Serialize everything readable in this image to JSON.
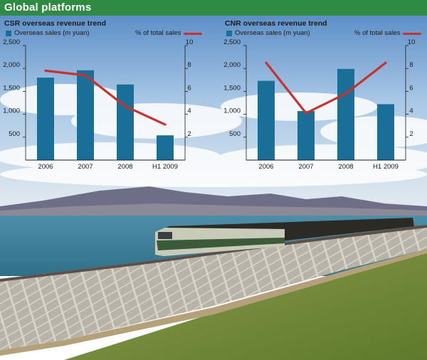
{
  "header": {
    "title": "Global platforms"
  },
  "colors": {
    "header_bg": "#2f8a43",
    "bar": "#1a6f98",
    "line": "#c8322d"
  },
  "chart_data": [
    {
      "type": "bar",
      "title": "CSR overseas revenue trend",
      "categories": [
        "2006",
        "2007",
        "2008",
        "H1 2009"
      ],
      "series": [
        {
          "name": "Overseas sales (m yuan)",
          "type": "bar",
          "axis": "left",
          "values": [
            1800,
            1960,
            1650,
            540
          ]
        },
        {
          "name": "% of total sales",
          "type": "line",
          "axis": "right",
          "values": [
            7.8,
            7.4,
            4.7,
            3.1
          ]
        }
      ],
      "y_left": {
        "ticks": [
          "2,500",
          "2,000",
          "1,500",
          "1,000",
          "500"
        ],
        "lim": [
          0,
          2500
        ]
      },
      "y_right": {
        "ticks": [
          "10",
          "8",
          "6",
          "4",
          "2"
        ],
        "lim": [
          0,
          10
        ]
      },
      "legend": "top",
      "grid": false
    },
    {
      "type": "bar",
      "title": "CNR overseas revenue trend",
      "categories": [
        "2006",
        "2007",
        "2008",
        "H1 2009"
      ],
      "series": [
        {
          "name": "Overseas sales (m yuan)",
          "type": "bar",
          "axis": "left",
          "values": [
            1730,
            1070,
            1990,
            1220
          ]
        },
        {
          "name": "% of total sales",
          "type": "line",
          "axis": "right",
          "values": [
            8.5,
            4.1,
            5.8,
            8.5
          ]
        }
      ],
      "y_left": {
        "ticks": [
          "2,500",
          "2,000",
          "1,500",
          "1,000",
          "500"
        ],
        "lim": [
          0,
          2500
        ]
      },
      "y_right": {
        "ticks": [
          "10",
          "8",
          "6",
          "4",
          "2"
        ],
        "lim": [
          0,
          10
        ]
      },
      "legend": "top",
      "grid": false
    }
  ]
}
